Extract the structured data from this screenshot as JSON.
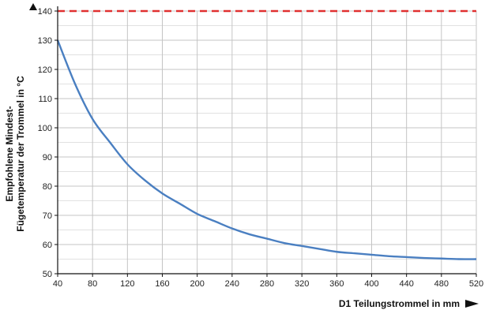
{
  "chart_data": {
    "type": "line",
    "title": "",
    "xlabel": "D1 Teilungstrommel in mm",
    "ylabel_lines": [
      "Empfohlene Mindest-",
      "Fügetemperatur der Trommel in °C"
    ],
    "xlim": [
      40,
      520
    ],
    "ylim": [
      50,
      140
    ],
    "xticks": [
      40,
      80,
      120,
      160,
      200,
      240,
      280,
      320,
      360,
      400,
      440,
      480,
      520
    ],
    "yticks": [
      50,
      60,
      70,
      80,
      90,
      100,
      110,
      120,
      130,
      140
    ],
    "grid": true,
    "series": [
      {
        "color": "#4a7fc1",
        "x": [
          40,
          60,
          80,
          100,
          120,
          140,
          160,
          180,
          200,
          220,
          240,
          260,
          280,
          300,
          320,
          340,
          360,
          380,
          400,
          420,
          440,
          460,
          480,
          500,
          520
        ],
        "y": [
          130,
          115,
          103,
          95,
          87.5,
          82,
          77.5,
          74,
          70.5,
          68,
          65.5,
          63.5,
          62,
          60.5,
          59.5,
          58.5,
          57.5,
          57,
          56.5,
          56,
          55.7,
          55.4,
          55.2,
          55,
          55
        ]
      }
    ],
    "reference_line": {
      "y": 140,
      "color": "#e03030",
      "style": "dashed"
    }
  }
}
